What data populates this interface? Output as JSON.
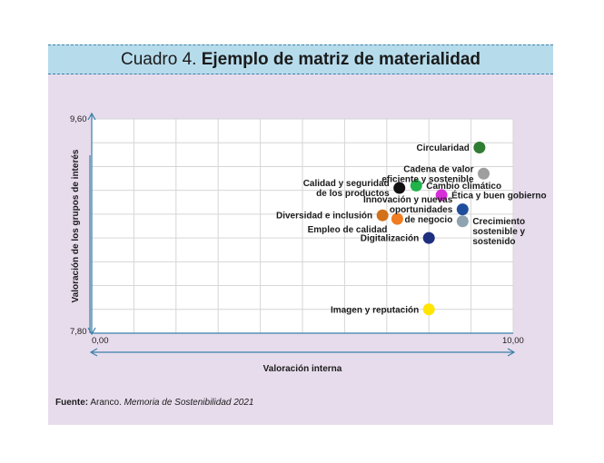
{
  "header": {
    "title_lead": "Cuadro 4.",
    "title_main": "Ejemplo de matriz de materialidad"
  },
  "source": {
    "label": "Fuente:",
    "text": "Aranco.",
    "italic": "Memoria de Sostenibilidad 2021"
  },
  "colors": {
    "frame_bg": "#e7dcec",
    "title_bg": "#b6dcec",
    "axis": "#3b7fa8",
    "grid": "#d6d6d6"
  },
  "chart_data": {
    "type": "scatter",
    "title": "Ejemplo de matriz de materialidad",
    "xlabel": "Valoración interna",
    "ylabel": "Valoración de los grupos de interés",
    "xlim": [
      0,
      10
    ],
    "ylim": [
      7.8,
      9.6
    ],
    "x_tick_labels": [
      {
        "value": 0,
        "label": "0,00"
      },
      {
        "value": 10,
        "label": "10,00"
      }
    ],
    "y_tick_labels": [
      {
        "value": 7.8,
        "label": "7,80"
      },
      {
        "value": 9.6,
        "label": "9,60"
      }
    ],
    "grid": true,
    "grid_columns": 10,
    "grid_rows": 9,
    "points": [
      {
        "label": "Circularidad",
        "lines": [
          "Circularidad"
        ],
        "x": 9.2,
        "y": 9.36,
        "color": "#2e7d32",
        "anchor": "left"
      },
      {
        "label": "Cadena de valor eficiente y sostenible",
        "lines": [
          "Cadena de valor",
          "eficiente y sostenible"
        ],
        "x": 9.3,
        "y": 9.14,
        "color": "#9e9e9e",
        "anchor": "left"
      },
      {
        "label": "Calidad y seguridad de los productos",
        "lines": [
          "Calidad y seguridad",
          "de los productos"
        ],
        "x": 7.3,
        "y": 9.02,
        "color": "#111111",
        "anchor": "left"
      },
      {
        "label": "Cambio climático",
        "lines": [
          "Cambio climático"
        ],
        "x": 7.7,
        "y": 9.04,
        "color": "#1fb34a",
        "anchor": "right"
      },
      {
        "label": "Ética y buen gobierno",
        "lines": [
          "Ética y buen gobierno"
        ],
        "x": 8.3,
        "y": 8.96,
        "color": "#d62fd8",
        "anchor": "right"
      },
      {
        "label": "Innovación y nuevas oportunidades de negocio",
        "lines": [
          "Innovación y nuevas",
          "oportunidades",
          "de negocio"
        ],
        "x": 8.8,
        "y": 8.84,
        "color": "#1f4f9c",
        "anchor": "left"
      },
      {
        "label": "Diversidad e inclusión",
        "lines": [
          "Diversidad e inclusión"
        ],
        "x": 6.9,
        "y": 8.79,
        "color": "#d2711a",
        "anchor": "left"
      },
      {
        "label": "Empleo de calidad",
        "lines": [
          "Empleo de calidad"
        ],
        "x": 7.25,
        "y": 8.76,
        "color": "#f07d22",
        "anchor": "left-below"
      },
      {
        "label": "Crecimiento sostenible y sostenido",
        "lines": [
          "Crecimiento",
          "sostenible y",
          "sostenido"
        ],
        "x": 8.8,
        "y": 8.74,
        "color": "#8fa3b0",
        "anchor": "right"
      },
      {
        "label": "Digitalización",
        "lines": [
          "Digitalización"
        ],
        "x": 8.0,
        "y": 8.6,
        "color": "#1f2f80",
        "anchor": "left"
      },
      {
        "label": "Imagen y reputación",
        "lines": [
          "Imagen y reputación"
        ],
        "x": 8.0,
        "y": 8.0,
        "color": "#ffe500",
        "anchor": "left"
      }
    ]
  }
}
